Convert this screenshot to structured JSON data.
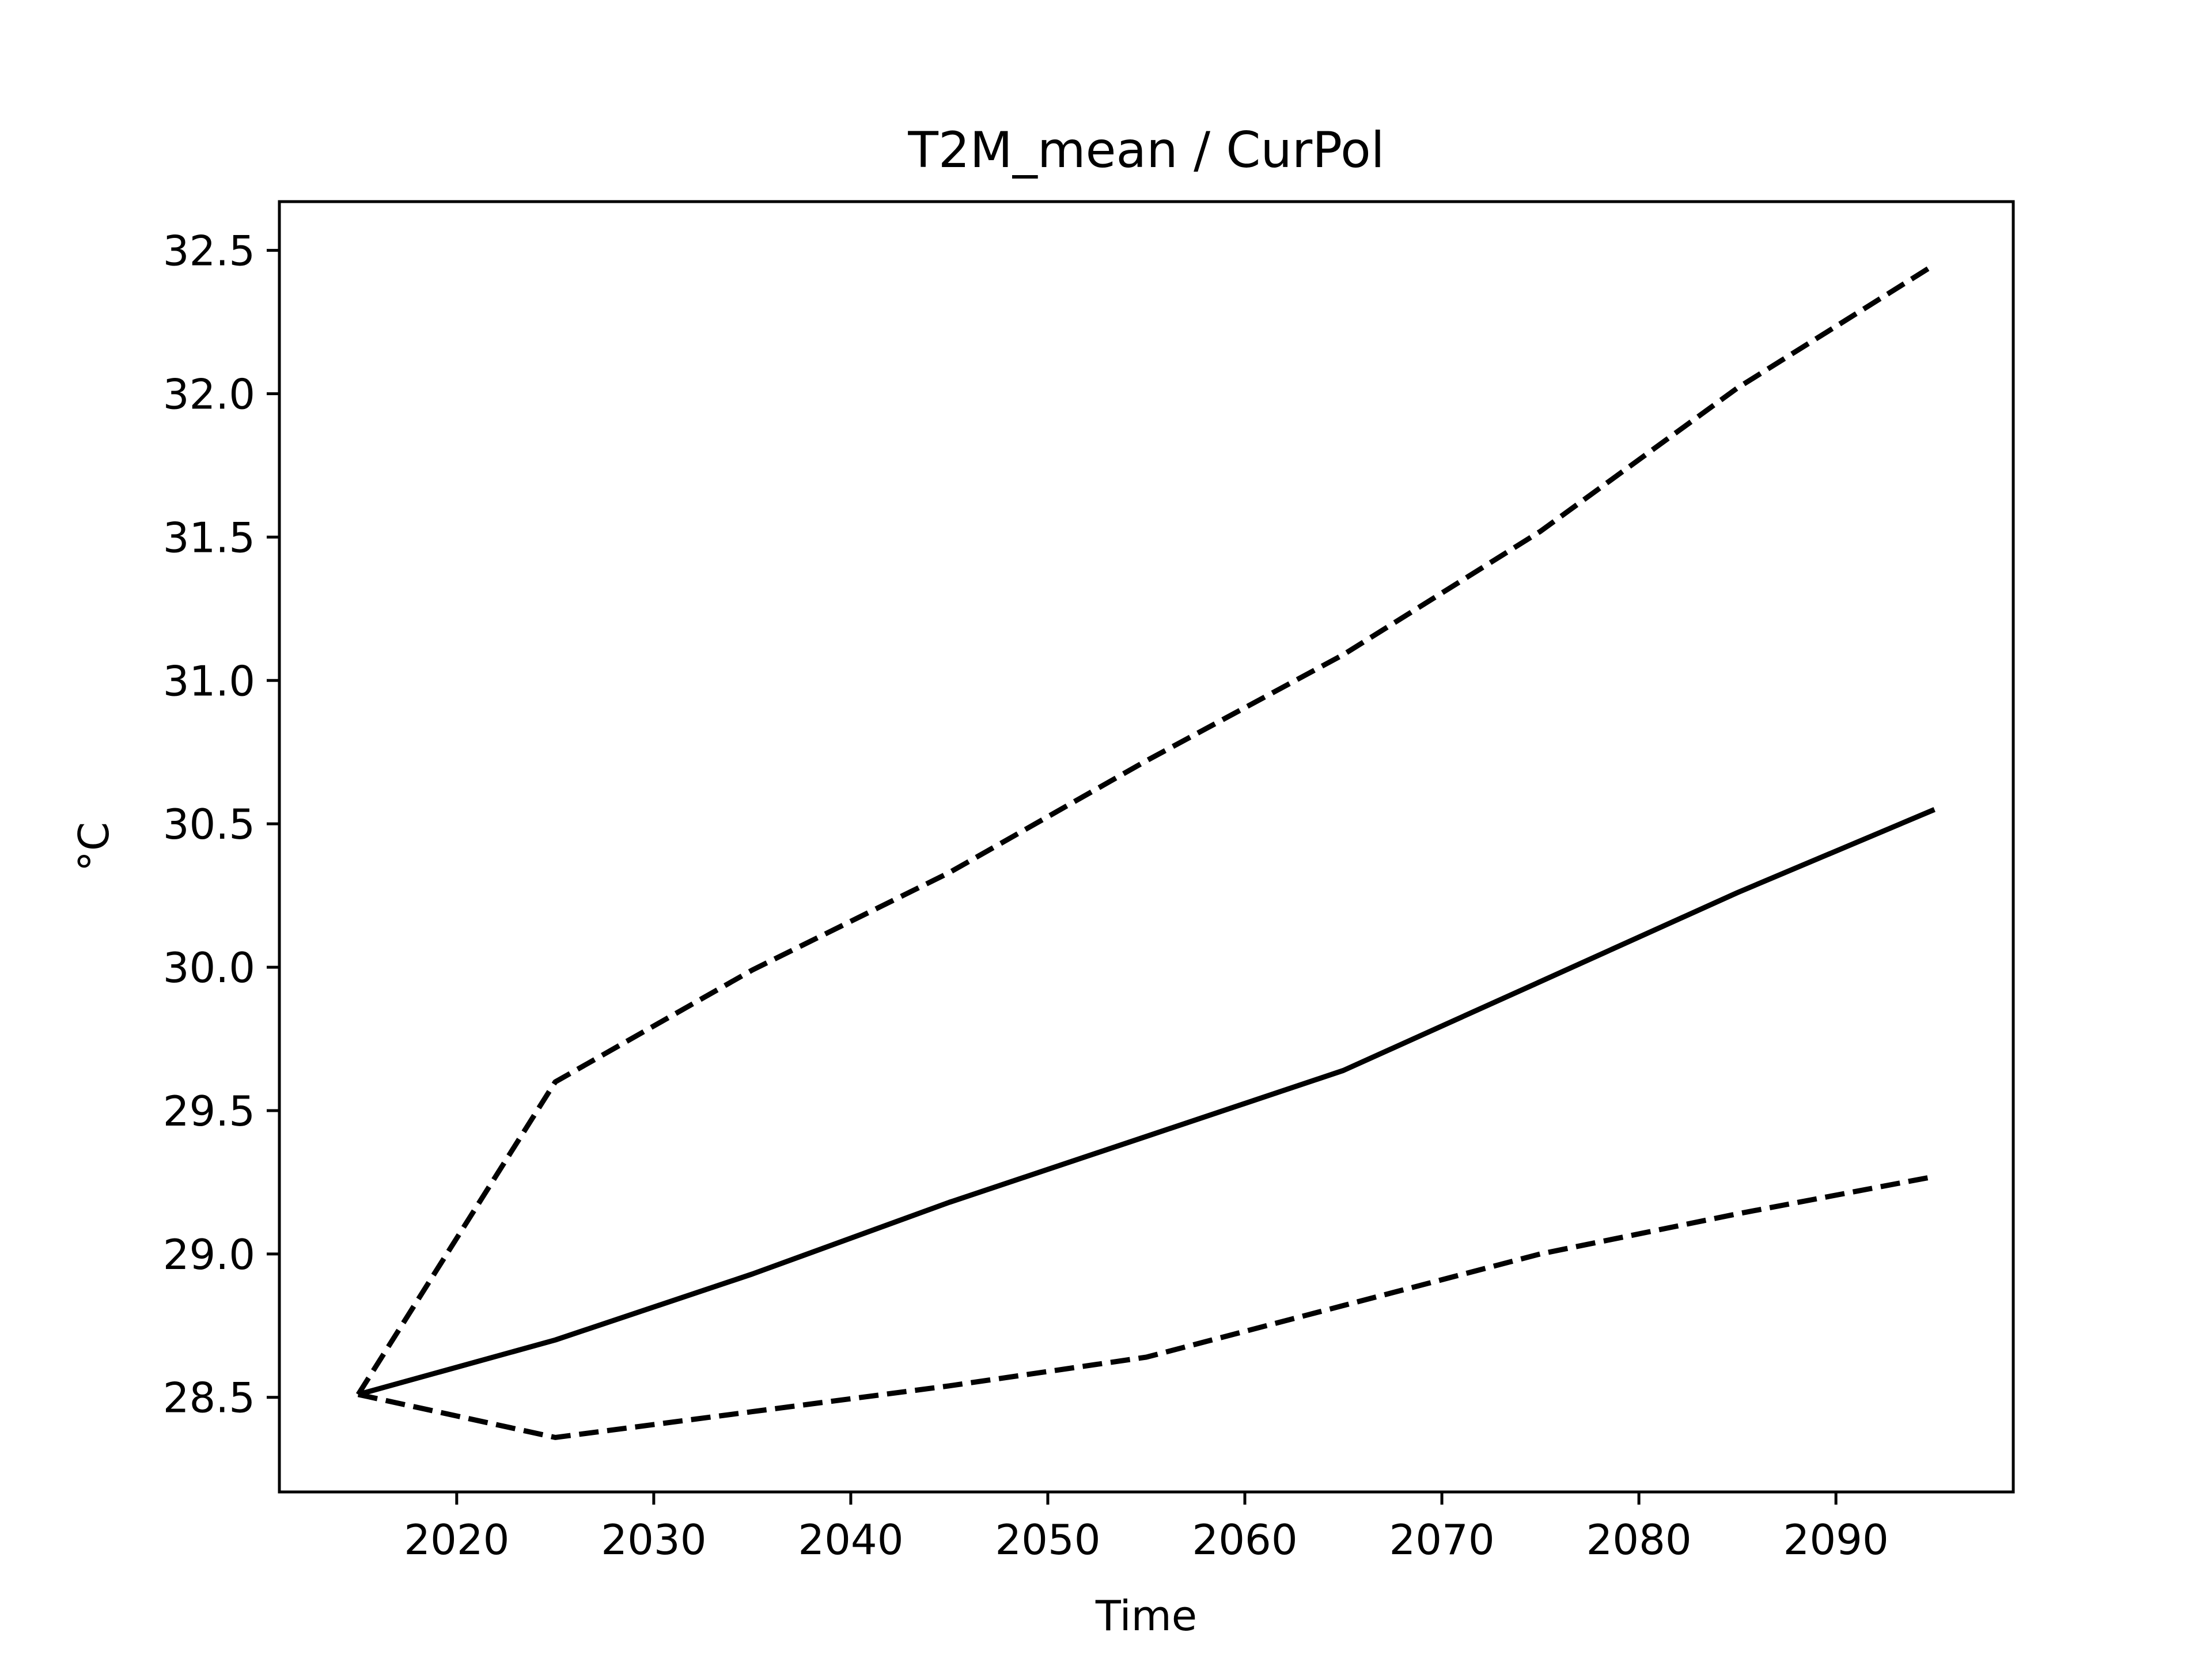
{
  "chart_data": {
    "type": "line",
    "title": "T2M_mean / CurPol",
    "xlabel": "Time",
    "ylabel": "°C",
    "xlim": [
      2011,
      2099
    ],
    "ylim": [
      28.17,
      32.67
    ],
    "xticks": [
      2020,
      2030,
      2040,
      2050,
      2060,
      2070,
      2080,
      2090
    ],
    "yticks": [
      28.5,
      29.0,
      29.5,
      30.0,
      30.5,
      31.0,
      31.5,
      32.0,
      32.5
    ],
    "grid": false,
    "line_color": "#000000",
    "x": [
      2015,
      2025,
      2035,
      2045,
      2055,
      2065,
      2075,
      2085,
      2095
    ],
    "series": [
      {
        "style": "solid",
        "values": [
          28.51,
          28.7,
          28.93,
          29.18,
          29.41,
          29.64,
          29.95,
          30.26,
          30.55
        ]
      },
      {
        "style": "dashed",
        "values": [
          28.51,
          29.6,
          29.99,
          30.33,
          30.72,
          31.09,
          31.52,
          32.02,
          32.45
        ]
      },
      {
        "style": "dashed",
        "values": [
          28.51,
          28.36,
          28.45,
          28.54,
          28.64,
          28.82,
          29.0,
          29.14,
          29.27
        ]
      }
    ]
  }
}
